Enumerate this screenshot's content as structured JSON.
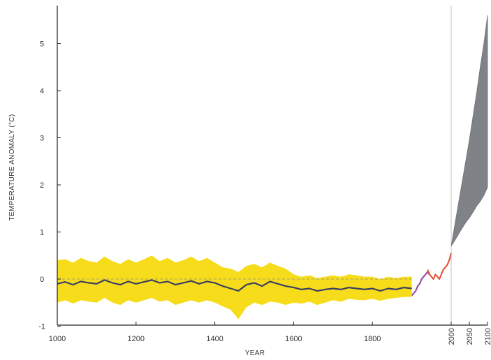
{
  "chart_data": {
    "type": "line",
    "title": "",
    "xlabel": "YEAR",
    "ylabel": "TEMPERATURE ANOMALY (°C)",
    "x_ticks": [
      1000,
      1200,
      1400,
      1600,
      1800
    ],
    "x_ticks_rotated": [
      2000,
      2050,
      2100
    ],
    "y_ticks": [
      -1,
      0,
      1,
      2,
      3,
      4,
      5
    ],
    "xlim_left": [
      1000,
      2000
    ],
    "xlim_right": [
      2000,
      2100
    ],
    "ylim": [
      -1,
      5.8
    ],
    "grid": false,
    "legend": "none",
    "colors": {
      "uncertainty_band": "#f6dc1a",
      "reconstruction": "#3c3f63",
      "instrumental_early": "#9a4fa0",
      "instrumental": "#e64a2e",
      "projection_range": "#7f8286",
      "zero_line": "#8a8a8a"
    },
    "series": [
      {
        "kind": "reconstruction_with_uncertainty",
        "x": [
          1000,
          1020,
          1040,
          1060,
          1080,
          1100,
          1120,
          1140,
          1160,
          1180,
          1200,
          1220,
          1240,
          1260,
          1280,
          1300,
          1320,
          1340,
          1360,
          1380,
          1400,
          1420,
          1440,
          1460,
          1480,
          1500,
          1520,
          1540,
          1560,
          1580,
          1600,
          1620,
          1640,
          1660,
          1680,
          1700,
          1720,
          1740,
          1760,
          1780,
          1800,
          1820,
          1840,
          1860,
          1880,
          1900
        ],
        "y": [
          -0.1,
          -0.06,
          -0.12,
          -0.05,
          -0.08,
          -0.1,
          -0.02,
          -0.08,
          -0.12,
          -0.05,
          -0.1,
          -0.06,
          -0.02,
          -0.08,
          -0.05,
          -0.12,
          -0.08,
          -0.04,
          -0.1,
          -0.05,
          -0.08,
          -0.15,
          -0.2,
          -0.25,
          -0.12,
          -0.08,
          -0.15,
          -0.05,
          -0.1,
          -0.15,
          -0.18,
          -0.22,
          -0.2,
          -0.25,
          -0.22,
          -0.2,
          -0.22,
          -0.18,
          -0.2,
          -0.22,
          -0.2,
          -0.25,
          -0.2,
          -0.22,
          -0.18,
          -0.2
        ],
        "lower": [
          -0.5,
          -0.45,
          -0.52,
          -0.45,
          -0.48,
          -0.5,
          -0.4,
          -0.5,
          -0.55,
          -0.45,
          -0.5,
          -0.45,
          -0.4,
          -0.48,
          -0.45,
          -0.55,
          -0.5,
          -0.45,
          -0.5,
          -0.45,
          -0.5,
          -0.58,
          -0.65,
          -0.85,
          -0.6,
          -0.5,
          -0.55,
          -0.48,
          -0.5,
          -0.55,
          -0.5,
          -0.52,
          -0.48,
          -0.55,
          -0.5,
          -0.45,
          -0.48,
          -0.42,
          -0.44,
          -0.45,
          -0.42,
          -0.46,
          -0.42,
          -0.4,
          -0.38,
          -0.38
        ],
        "upper": [
          0.4,
          0.42,
          0.35,
          0.45,
          0.38,
          0.35,
          0.48,
          0.38,
          0.32,
          0.42,
          0.35,
          0.42,
          0.5,
          0.38,
          0.45,
          0.35,
          0.4,
          0.48,
          0.38,
          0.45,
          0.35,
          0.25,
          0.22,
          0.15,
          0.28,
          0.32,
          0.25,
          0.35,
          0.28,
          0.22,
          0.1,
          0.05,
          0.08,
          0.02,
          0.05,
          0.08,
          0.05,
          0.1,
          0.08,
          0.05,
          0.05,
          0.0,
          0.05,
          0.02,
          0.05,
          0.05
        ]
      },
      {
        "kind": "instrumental_early",
        "x": [
          1900,
          1905,
          1910,
          1915,
          1920,
          1925,
          1930,
          1935,
          1940,
          1945
        ],
        "y": [
          -0.35,
          -0.3,
          -0.25,
          -0.15,
          -0.1,
          0.0,
          0.05,
          0.1,
          0.15,
          0.1
        ]
      },
      {
        "kind": "instrumental",
        "x": [
          1940,
          1945,
          1950,
          1955,
          1960,
          1965,
          1970,
          1975,
          1980,
          1985,
          1990,
          1995,
          2000
        ],
        "y": [
          0.2,
          0.1,
          0.05,
          0.0,
          0.1,
          0.05,
          0.0,
          0.1,
          0.2,
          0.25,
          0.3,
          0.4,
          0.55
        ]
      },
      {
        "kind": "projection_range",
        "x": [
          2000,
          2010,
          2020,
          2030,
          2040,
          2050,
          2060,
          2070,
          2080,
          2090,
          2100
        ],
        "lower": [
          0.7,
          0.82,
          0.95,
          1.08,
          1.2,
          1.3,
          1.42,
          1.55,
          1.65,
          1.78,
          1.95
        ],
        "upper": [
          0.7,
          1.15,
          1.6,
          2.05,
          2.5,
          2.95,
          3.45,
          3.95,
          4.5,
          5.0,
          5.6
        ]
      }
    ]
  }
}
